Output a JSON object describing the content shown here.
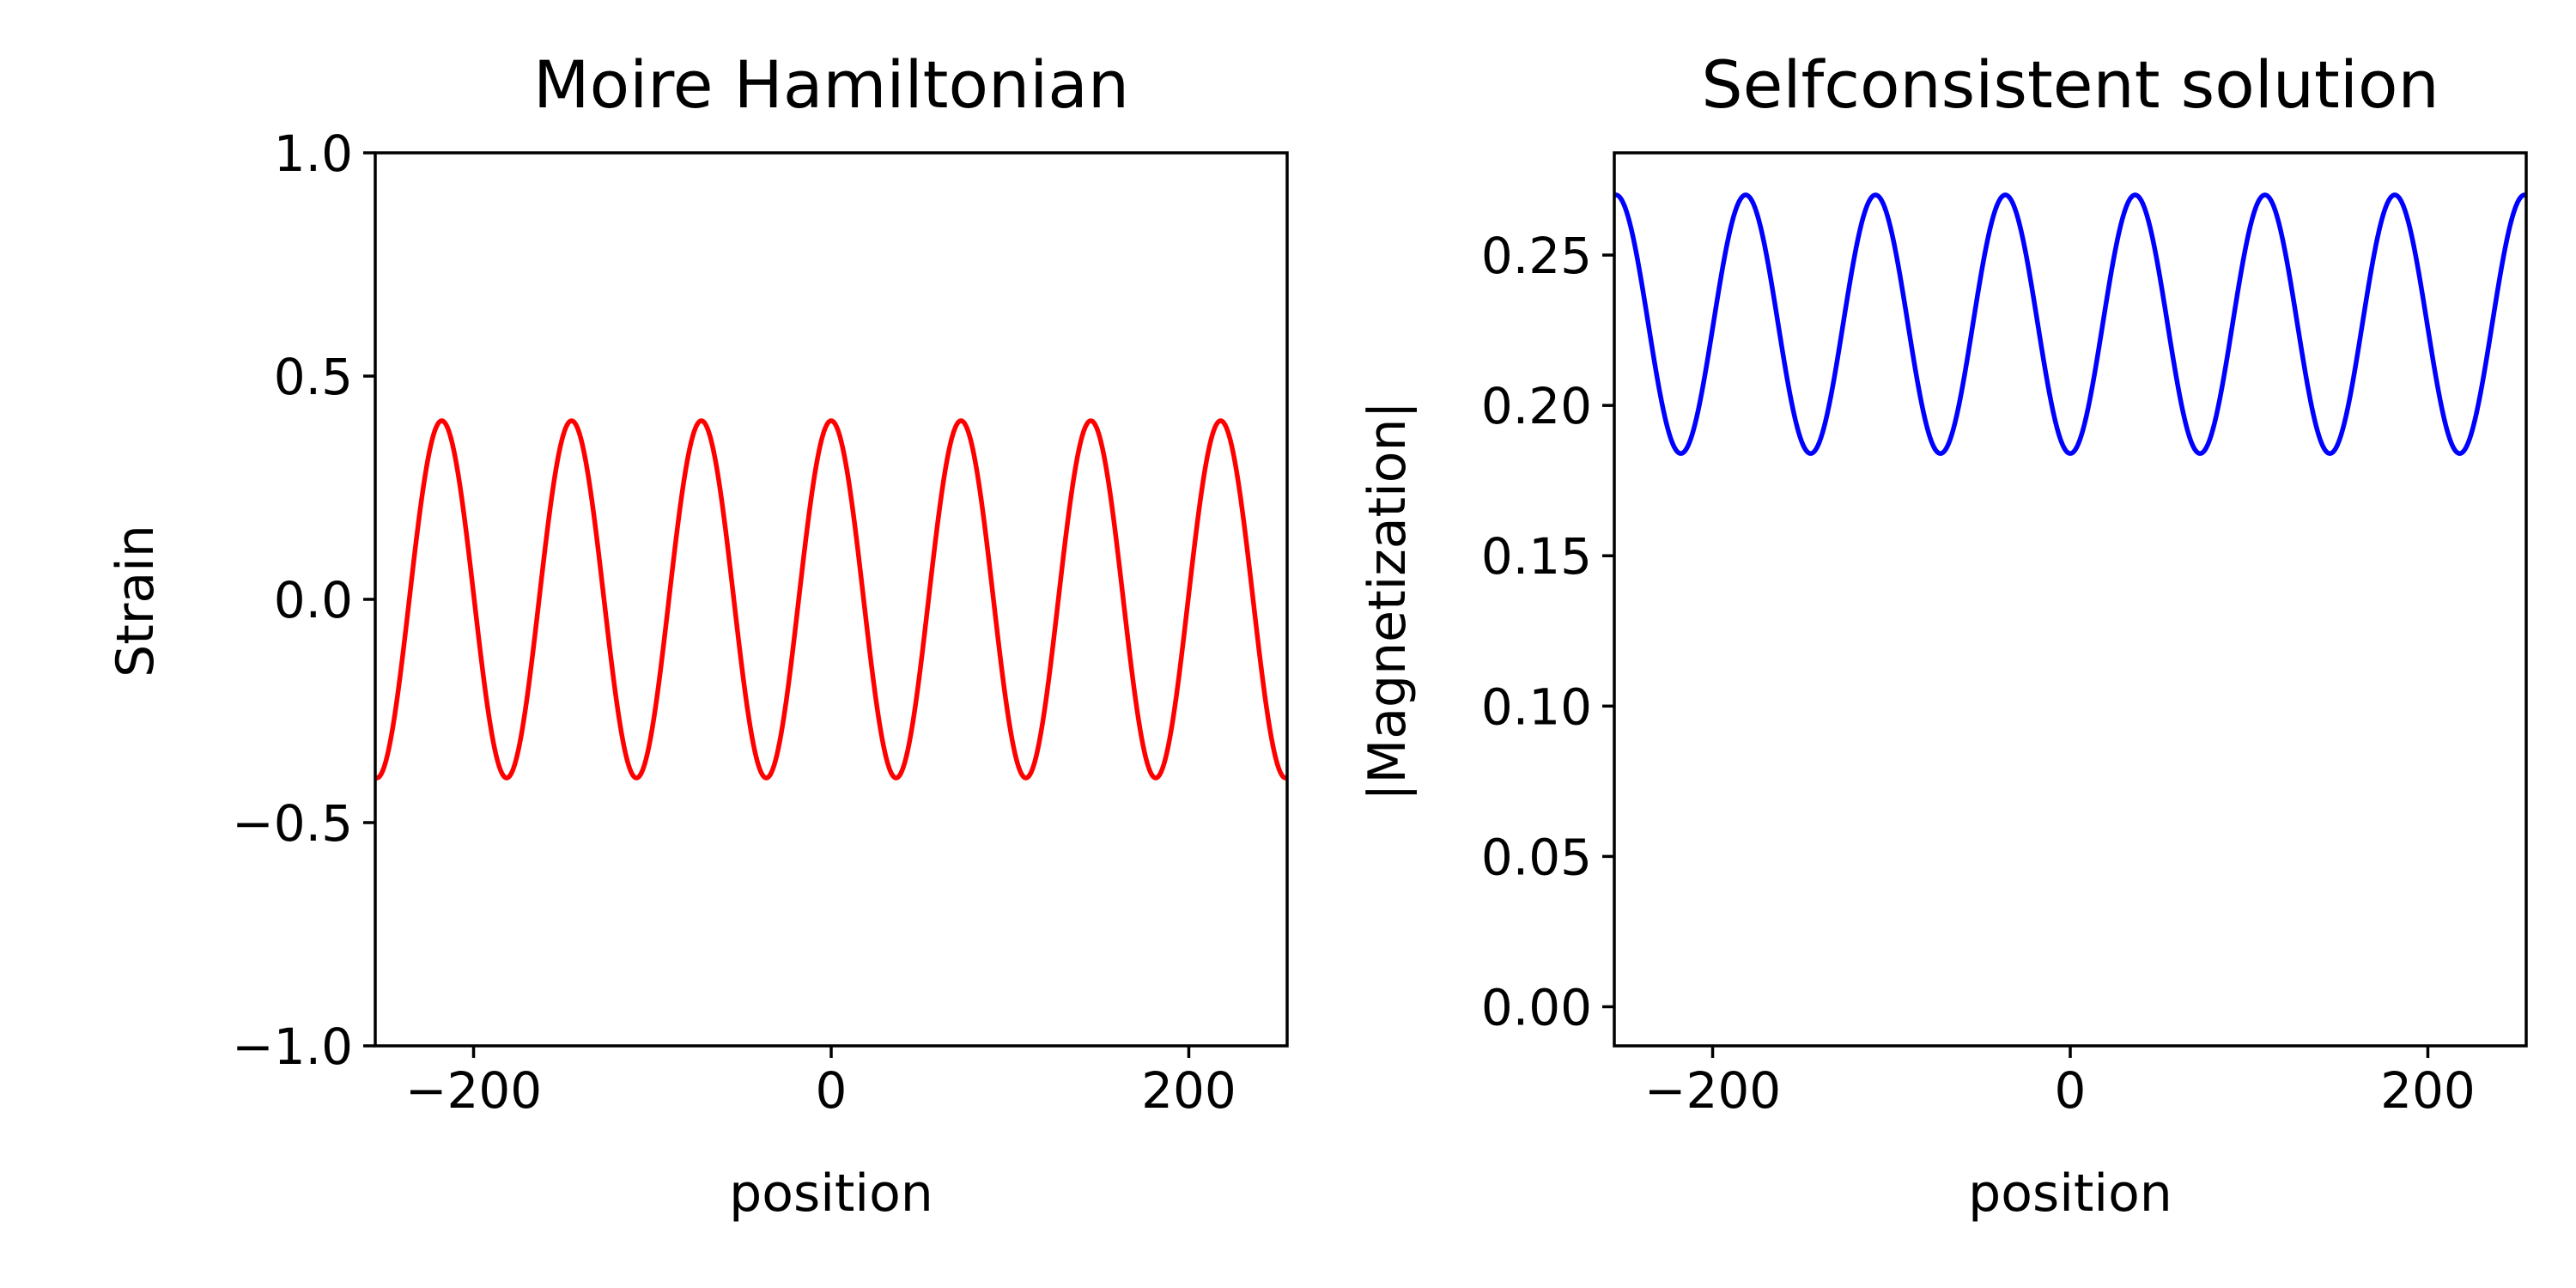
{
  "chart_data": [
    {
      "type": "line",
      "title": "Moire Hamiltonian",
      "xlabel": "position",
      "ylabel": "Strain",
      "xlim": [
        -255,
        255
      ],
      "ylim": [
        -1.0,
        1.0
      ],
      "grid": false,
      "xticks": [
        -200,
        0,
        200
      ],
      "xtick_labels": [
        "−200",
        "0",
        "200"
      ],
      "yticks": [
        -1.0,
        -0.5,
        0.0,
        0.5,
        1.0
      ],
      "ytick_labels": [
        "−1.0",
        "−0.5",
        "0.0",
        "0.5",
        "1.0"
      ],
      "series": [
        {
          "color": "#ff0000",
          "function": "cosine",
          "offset": 0.0,
          "amplitude": 0.4,
          "period": 72.6,
          "peak_at_x": 0
        }
      ]
    },
    {
      "type": "line",
      "title": "Selfconsistent solution",
      "xlabel": "position",
      "ylabel": "|Magnetization|",
      "xlim": [
        -255,
        255
      ],
      "ylim": [
        -0.013,
        0.284
      ],
      "grid": false,
      "xticks": [
        -200,
        0,
        200
      ],
      "xtick_labels": [
        "−200",
        "0",
        "200"
      ],
      "yticks": [
        0.0,
        0.05,
        0.1,
        0.15,
        0.2,
        0.25
      ],
      "ytick_labels": [
        "0.00",
        "0.05",
        "0.10",
        "0.15",
        "0.20",
        "0.25"
      ],
      "series": [
        {
          "color": "#0000ff",
          "function": "cosine",
          "offset": 0.227,
          "amplitude": 0.043,
          "period": 72.6,
          "peak_at_x": 36.3
        }
      ]
    }
  ]
}
